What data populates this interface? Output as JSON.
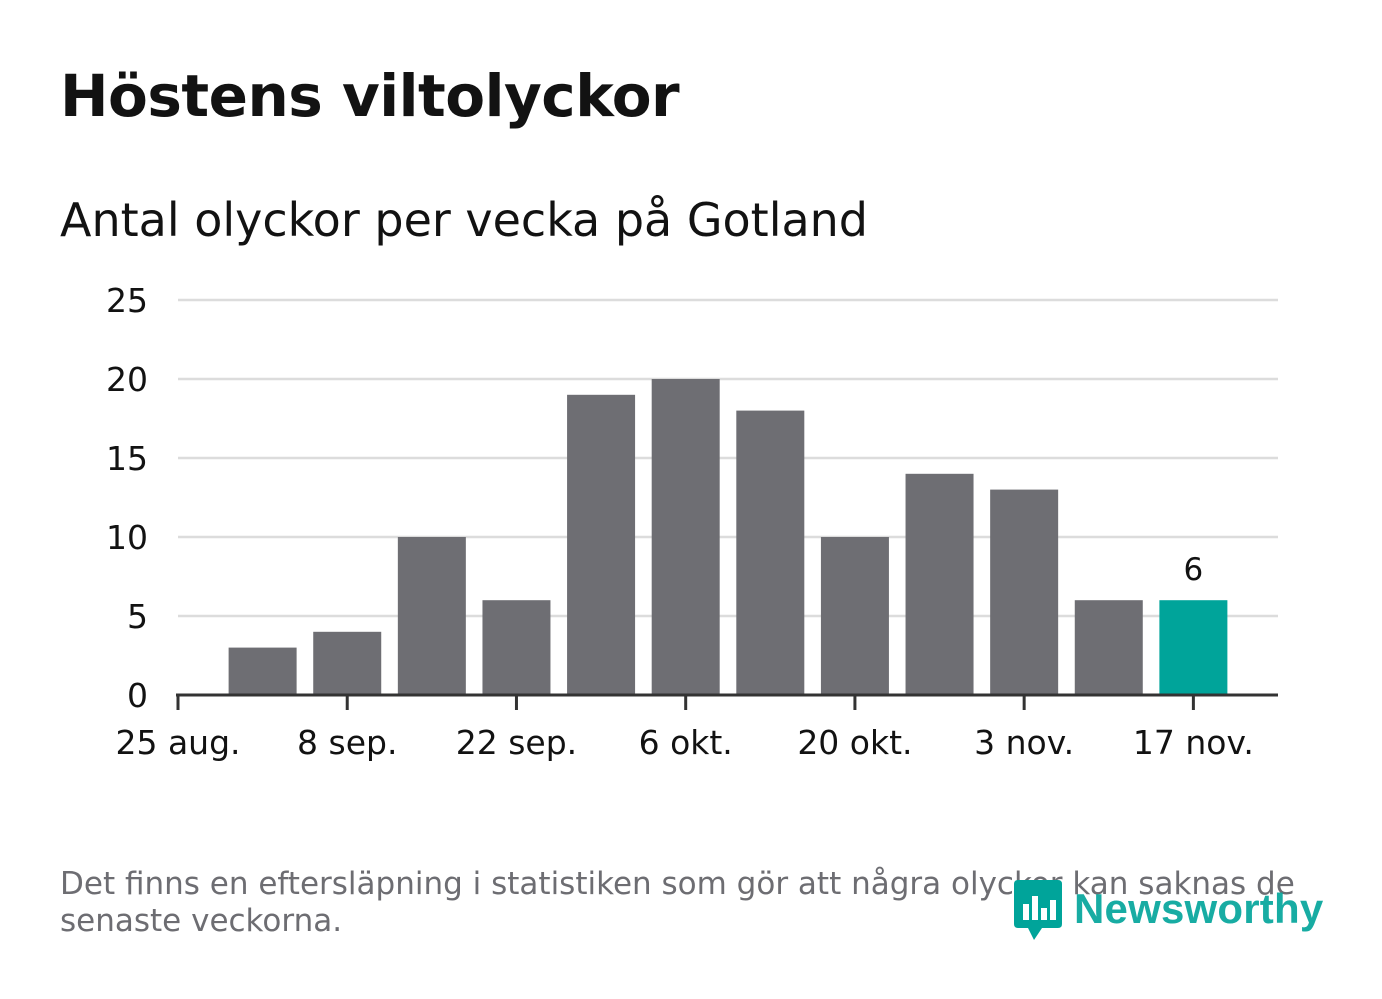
{
  "colors": {
    "bar": "#6e6e73",
    "highlight": "#00a49a",
    "grid": "#dcdcdc",
    "axis": "#333333",
    "text": "#121212",
    "muted": "#6d6d72"
  },
  "title": "Höstens viltolyckor",
  "subtitle": "Antal olyckor per vecka på Gotland",
  "footnote": "Det finns en eftersläpning i statistiken som gör att några olyckor kan saknas de senaste veckorna.",
  "logo": {
    "text": "Newsworthy",
    "icon": "chart-bubble-icon"
  },
  "chart_data": {
    "type": "bar",
    "title": "Antal olyckor per vecka på Gotland",
    "xlabel": "",
    "ylabel": "",
    "ylim": [
      0,
      25
    ],
    "yticks": [
      0,
      5,
      10,
      15,
      20,
      25
    ],
    "xtick_labels": [
      "25 aug.",
      "8 sep.",
      "22 sep.",
      "6 okt.",
      "20 okt.",
      "3 nov.",
      "17 nov."
    ],
    "values": [
      3,
      4,
      10,
      6,
      19,
      20,
      18,
      10,
      14,
      13,
      6,
      6
    ],
    "highlight_index": 11,
    "data_labels": [
      {
        "index": 11,
        "label": "6"
      }
    ],
    "grid": true
  }
}
